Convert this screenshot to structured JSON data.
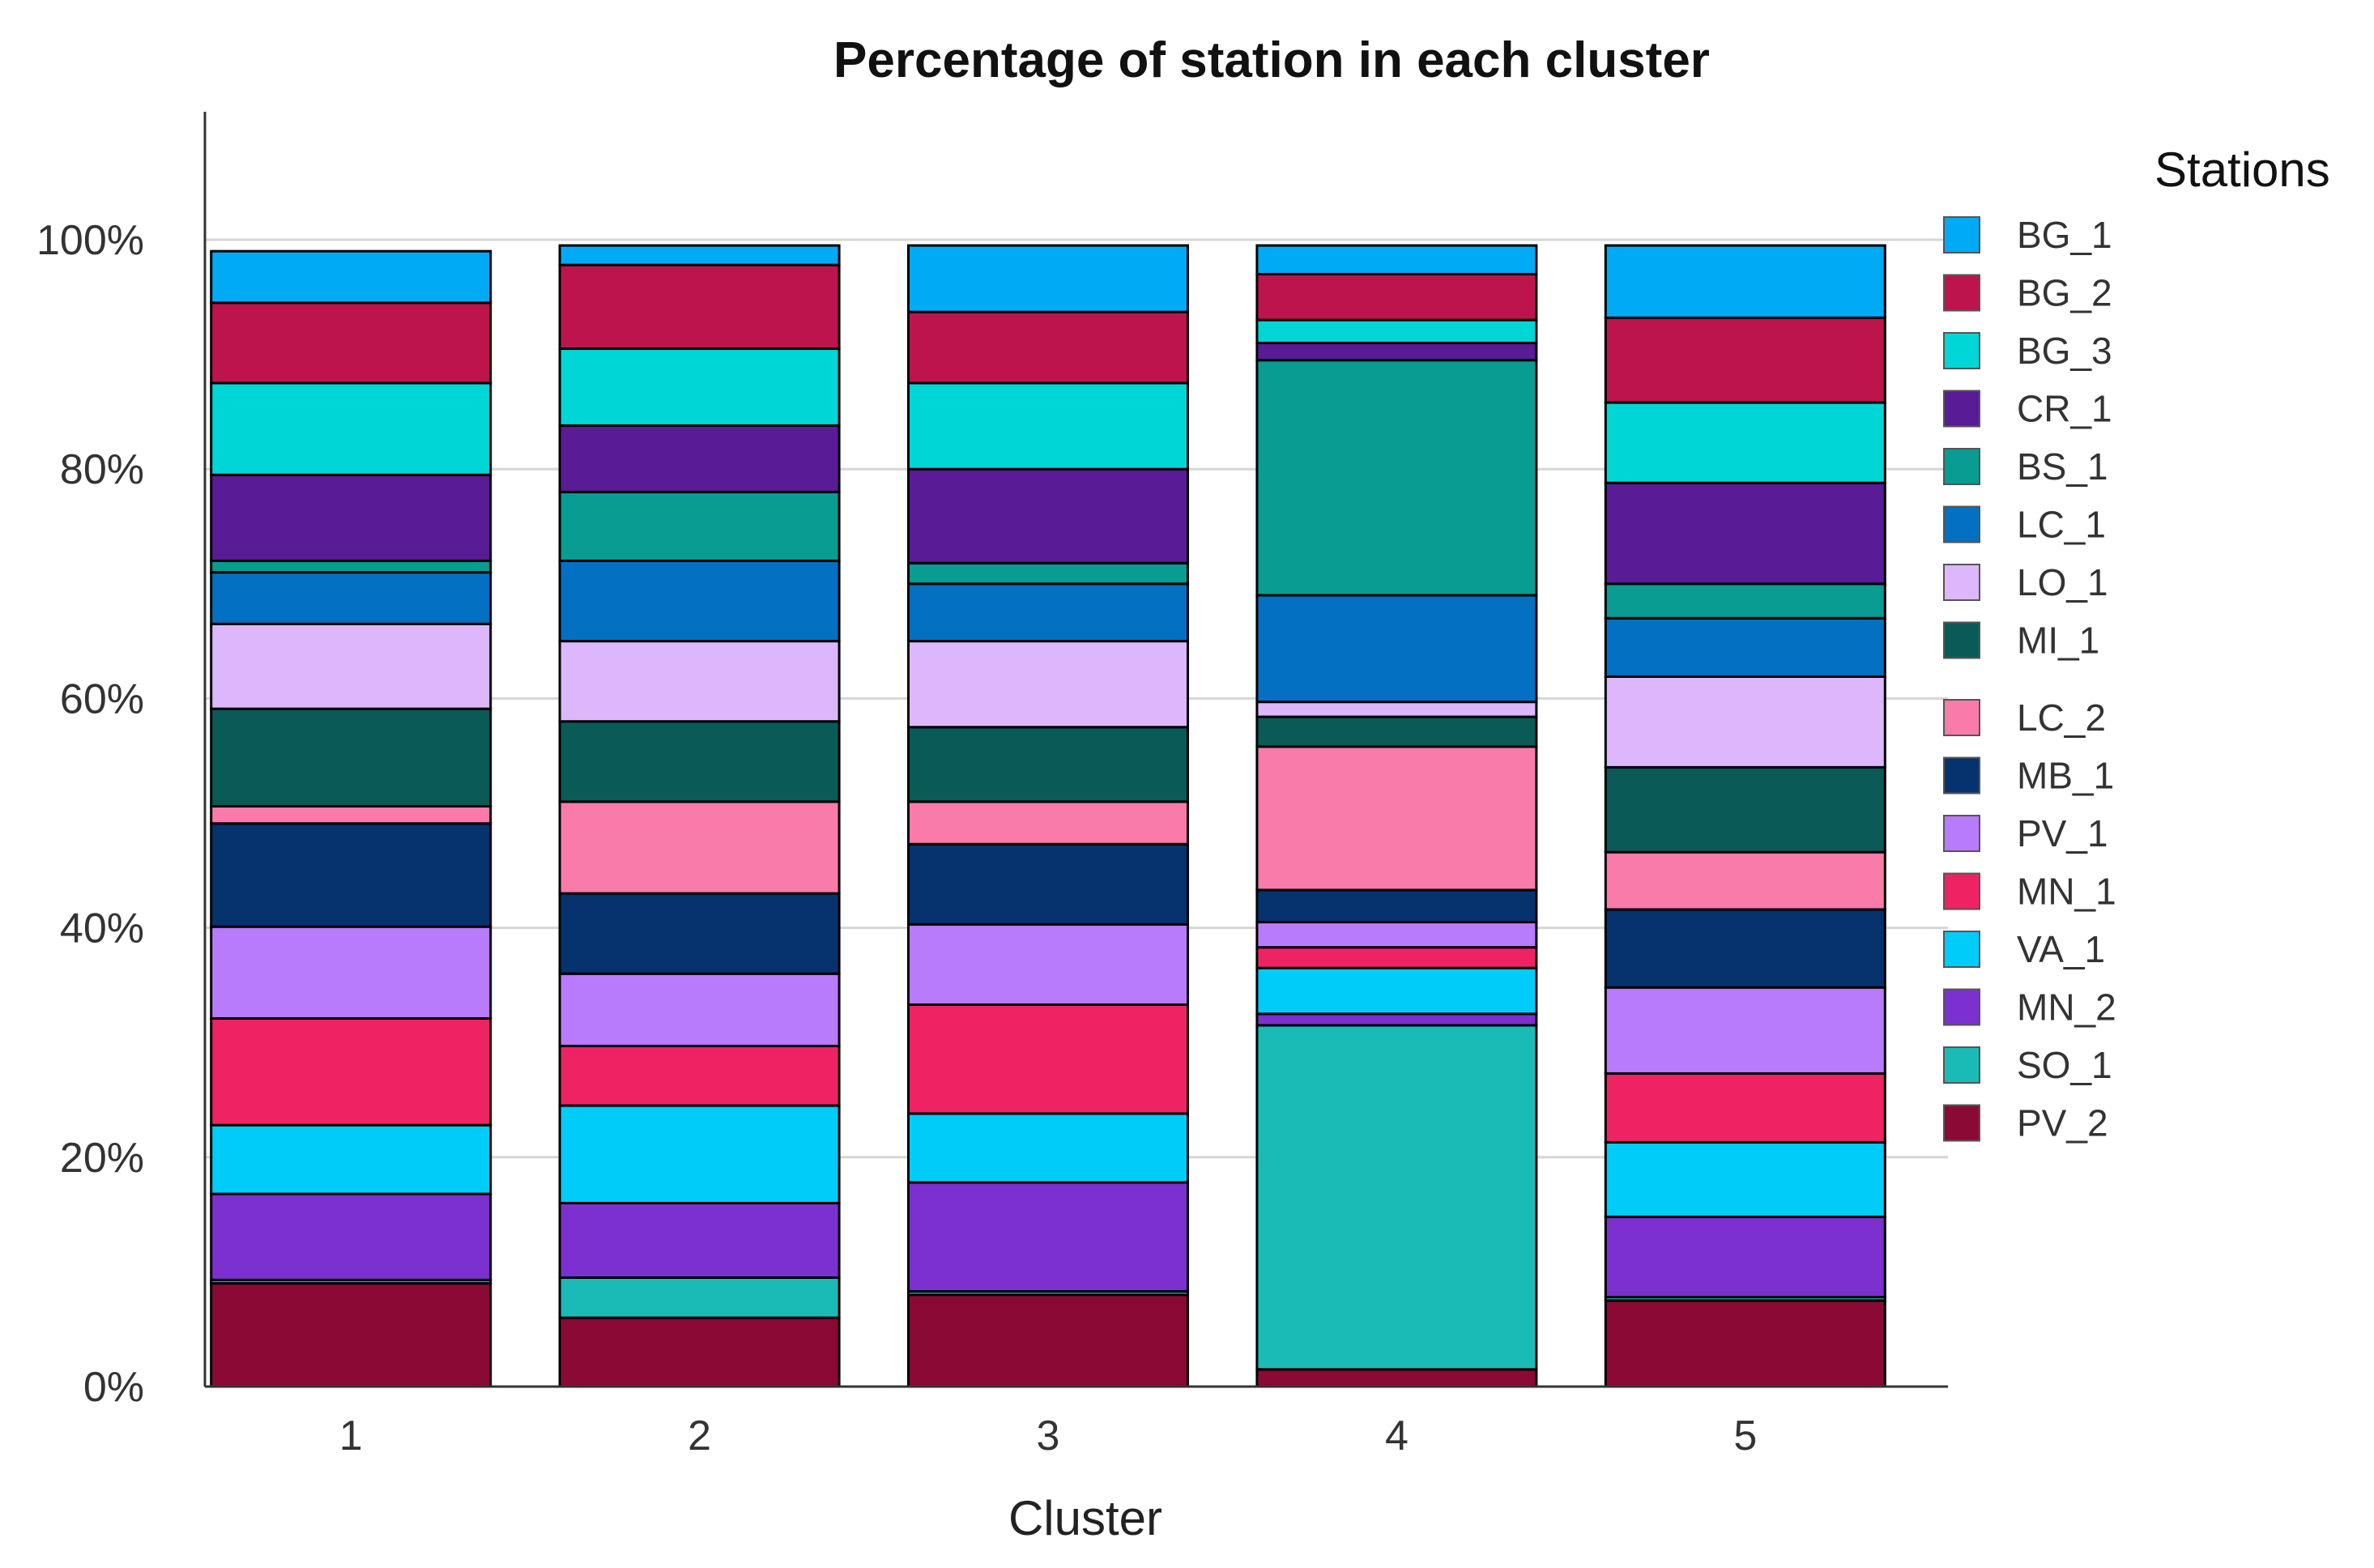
{
  "chart_data": {
    "type": "bar",
    "stacked": true,
    "title": "Percentage of station in each cluster",
    "xlabel": "Cluster",
    "ylabel": "",
    "ylim": [
      0,
      100
    ],
    "grid": true,
    "legend_position": "right",
    "legend_title": "Stations",
    "categories": [
      "1",
      "2",
      "3",
      "4",
      "5"
    ],
    "y_ticks": [
      0,
      20,
      40,
      60,
      80,
      100
    ],
    "y_tick_labels": [
      "0%",
      "20%",
      "40%",
      "60%",
      "80%",
      "100%"
    ],
    "series": [
      {
        "name": "PV_2",
        "color": "#8A0A35",
        "values": [
          9.0,
          6.0,
          8.0,
          1.5,
          7.5
        ]
      },
      {
        "name": "SO_1",
        "color": "#1ABBB6",
        "values": [
          0.3,
          3.5,
          0.3,
          30.0,
          0.3
        ]
      },
      {
        "name": "MN_2",
        "color": "#7B30CF",
        "values": [
          7.5,
          6.5,
          9.5,
          1.0,
          7.0
        ]
      },
      {
        "name": "VA_1",
        "color": "#00CCF9",
        "values": [
          6.0,
          8.5,
          6.0,
          4.0,
          6.5
        ]
      },
      {
        "name": "MN_1",
        "color": "#EF2363",
        "values": [
          9.3,
          5.2,
          9.5,
          1.8,
          6.0
        ]
      },
      {
        "name": "PV_1",
        "color": "#B87BFB",
        "values": [
          8.0,
          6.3,
          7.0,
          2.2,
          7.5
        ]
      },
      {
        "name": "MB_1",
        "color": "#06326E",
        "values": [
          9.0,
          7.0,
          7.0,
          2.8,
          6.8
        ]
      },
      {
        "name": "LC_2",
        "color": "#F87BA9",
        "values": [
          1.5,
          8.0,
          3.7,
          12.5,
          5.0
        ]
      },
      {
        "name": "MI_1",
        "color": "#0A5B57",
        "values": [
          8.5,
          7.0,
          6.5,
          2.6,
          7.4
        ]
      },
      {
        "name": "LO_1",
        "color": "#DDB7FB",
        "values": [
          7.4,
          7.0,
          7.5,
          1.3,
          7.9
        ]
      },
      {
        "name": "LC_1",
        "color": "#0470C2",
        "values": [
          4.5,
          7.0,
          5.0,
          9.3,
          5.1
        ]
      },
      {
        "name": "BS_1",
        "color": "#089C92",
        "values": [
          1.0,
          6.0,
          1.8,
          20.5,
          3.0
        ]
      },
      {
        "name": "CR_1",
        "color": "#5A1B96",
        "values": [
          7.5,
          5.8,
          8.2,
          1.5,
          8.8
        ]
      },
      {
        "name": "BG_3",
        "color": "#00D6D6",
        "values": [
          8.0,
          6.7,
          7.5,
          2.0,
          7.0
        ]
      },
      {
        "name": "BG_2",
        "color": "#BD144E",
        "values": [
          7.0,
          7.3,
          6.2,
          4.0,
          7.4
        ]
      },
      {
        "name": "BG_1",
        "color": "#00AAF5",
        "values": [
          4.5,
          1.7,
          5.8,
          2.5,
          6.3
        ]
      }
    ],
    "legend_order": [
      "BG_1",
      "BG_2",
      "BG_3",
      "CR_1",
      "BS_1",
      "LC_1",
      "LO_1",
      "MI_1",
      "LC_2",
      "MB_1",
      "PV_1",
      "MN_1",
      "VA_1",
      "MN_2",
      "SO_1",
      "PV_2"
    ]
  }
}
